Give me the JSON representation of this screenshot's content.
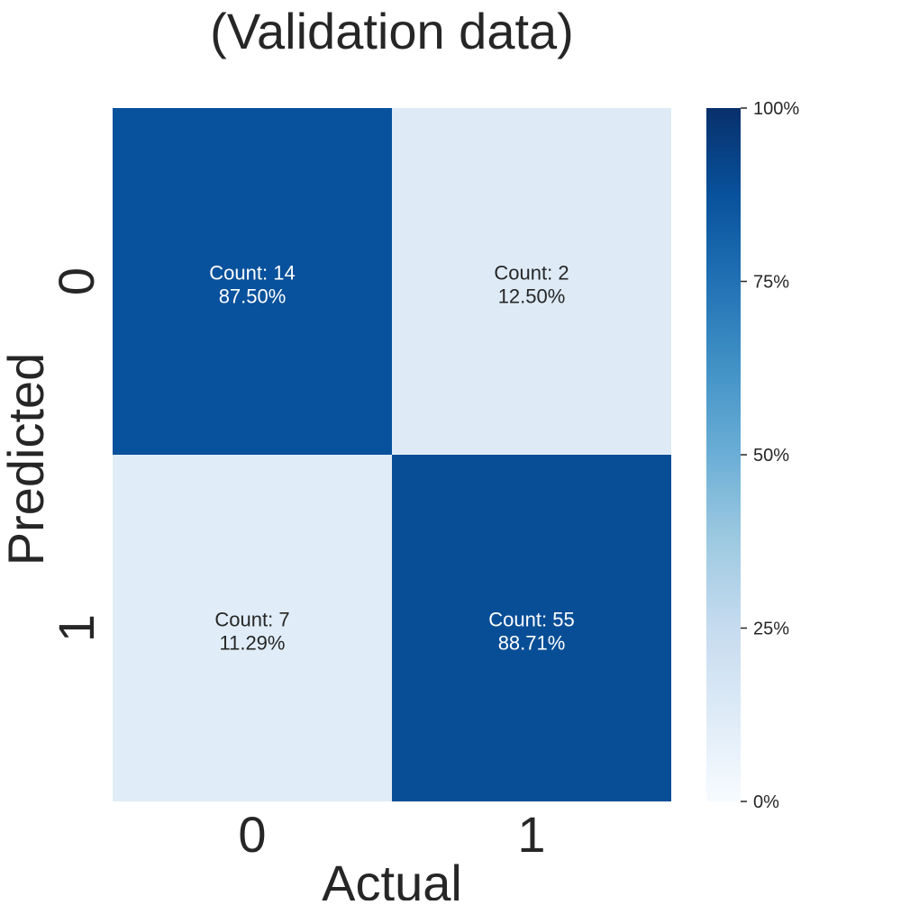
{
  "chart_data": {
    "type": "heatmap",
    "title": "(Validation data)",
    "xlabel": "Actual",
    "ylabel": "Predicted",
    "x_categories": [
      "0",
      "1"
    ],
    "y_categories": [
      "0",
      "1"
    ],
    "cells": [
      {
        "row": 0,
        "col": 0,
        "count": 14,
        "percent": 87.5,
        "label_line1": "Count: 14",
        "label_line2": "87.50%"
      },
      {
        "row": 0,
        "col": 1,
        "count": 2,
        "percent": 12.5,
        "label_line1": "Count: 2",
        "label_line2": "12.50%"
      },
      {
        "row": 1,
        "col": 0,
        "count": 7,
        "percent": 11.29,
        "label_line1": "Count: 7",
        "label_line2": "11.29%"
      },
      {
        "row": 1,
        "col": 1,
        "count": 55,
        "percent": 88.71,
        "label_line1": "Count: 55",
        "label_line2": "88.71%"
      }
    ],
    "colorbar": {
      "range": [
        0,
        100
      ],
      "ticks": [
        {
          "value": 0,
          "label": "0%"
        },
        {
          "value": 25,
          "label": "25%"
        },
        {
          "value": 50,
          "label": "50%"
        },
        {
          "value": 75,
          "label": "75%"
        },
        {
          "value": 100,
          "label": "100%"
        }
      ],
      "colormap": "Blues",
      "colors": [
        "#f7fbff",
        "#deebf7",
        "#c6dbef",
        "#9ecae1",
        "#6baed6",
        "#4292c6",
        "#2171b5",
        "#08519c",
        "#08306b"
      ]
    }
  }
}
